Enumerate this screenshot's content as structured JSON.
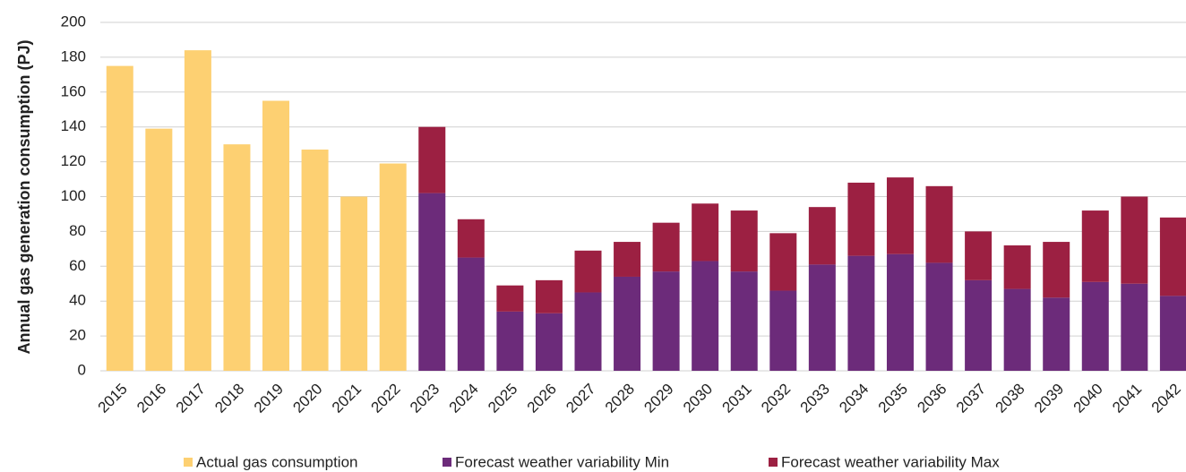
{
  "chart_data": {
    "type": "stacked_bar",
    "y_label": "Annual gas generation consumption (PJ)",
    "categories": [
      "2015",
      "2016",
      "2017",
      "2018",
      "2019",
      "2020",
      "2021",
      "2022",
      "2023",
      "2024",
      "2025",
      "2026",
      "2027",
      "2028",
      "2029",
      "2030",
      "2031",
      "2032",
      "2033",
      "2034",
      "2035",
      "2036",
      "2037",
      "2038",
      "2039",
      "2040",
      "2041",
      "2042"
    ],
    "series": [
      {
        "name": "Actual gas consumption",
        "color": "#fdd072",
        "values": [
          175,
          139,
          184,
          130,
          155,
          127,
          100,
          119,
          null,
          null,
          null,
          null,
          null,
          null,
          null,
          null,
          null,
          null,
          null,
          null,
          null,
          null,
          null,
          null,
          null,
          null,
          null,
          null
        ]
      },
      {
        "name": "Forecast weather variability Min",
        "color": "#6c2b7a",
        "values": [
          null,
          null,
          null,
          null,
          null,
          null,
          null,
          null,
          102,
          65,
          34,
          33,
          45,
          54,
          57,
          63,
          57,
          46,
          61,
          66,
          67,
          62,
          52,
          47,
          42,
          51,
          50,
          43
        ]
      },
      {
        "name": "Forecast weather variability Max",
        "color": "#9c2042",
        "values": [
          null,
          null,
          null,
          null,
          null,
          null,
          null,
          null,
          38,
          22,
          15,
          19,
          24,
          20,
          28,
          33,
          35,
          33,
          33,
          42,
          44,
          44,
          28,
          25,
          32,
          41,
          50,
          45
        ]
      }
    ],
    "ylim": [
      0,
      200
    ],
    "yticks": [
      0,
      20,
      40,
      60,
      80,
      100,
      120,
      140,
      160,
      180,
      200
    ],
    "grid": true,
    "legend": "bottom"
  }
}
